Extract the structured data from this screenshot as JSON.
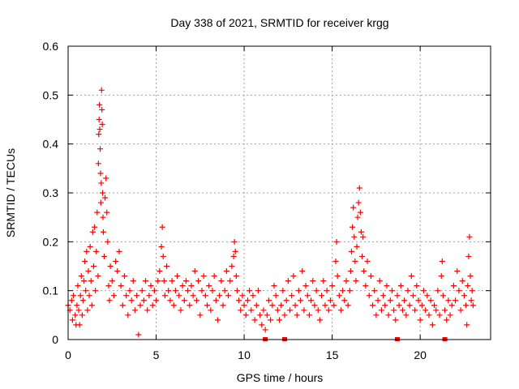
{
  "chart_data": {
    "type": "scatter",
    "title": "Day 338 of 2021, SRMTID for receiver krgg",
    "xlabel": "GPS time / hours",
    "ylabel": "SRMTID / TECUs",
    "xlim": [
      0,
      24
    ],
    "ylim": [
      0,
      0.6
    ],
    "xticks": [
      0,
      5,
      10,
      15,
      20
    ],
    "yticks": [
      0,
      0.1,
      0.2,
      0.3,
      0.4,
      0.5,
      0.6
    ],
    "grid": true,
    "marker": "+",
    "series_color": "#ff0000",
    "series": [
      {
        "name": "SRMTID",
        "points": [
          [
            0.0,
            0.07
          ],
          [
            0.1,
            0.06
          ],
          [
            0.2,
            0.08
          ],
          [
            0.25,
            0.04
          ],
          [
            0.3,
            0.09
          ],
          [
            0.4,
            0.05
          ],
          [
            0.45,
            0.03
          ],
          [
            0.5,
            0.07
          ],
          [
            0.55,
            0.11
          ],
          [
            0.6,
            0.06
          ],
          [
            0.65,
            0.03
          ],
          [
            0.7,
            0.09
          ],
          [
            0.75,
            0.13
          ],
          [
            0.8,
            0.05
          ],
          [
            0.85,
            0.08
          ],
          [
            0.9,
            0.12
          ],
          [
            0.95,
            0.16
          ],
          [
            1.0,
            0.1
          ],
          [
            1.05,
            0.18
          ],
          [
            1.1,
            0.06
          ],
          [
            1.15,
            0.14
          ],
          [
            1.2,
            0.09
          ],
          [
            1.25,
            0.19
          ],
          [
            1.3,
            0.12
          ],
          [
            1.35,
            0.07
          ],
          [
            1.4,
            0.22
          ],
          [
            1.45,
            0.15
          ],
          [
            1.5,
            0.23
          ],
          [
            1.55,
            0.1
          ],
          [
            1.6,
            0.18
          ],
          [
            1.65,
            0.26
          ],
          [
            1.7,
            0.13
          ],
          [
            1.72,
            0.36
          ],
          [
            1.74,
            0.42
          ],
          [
            1.76,
            0.45
          ],
          [
            1.78,
            0.48
          ],
          [
            1.8,
            0.43
          ],
          [
            1.82,
            0.39
          ],
          [
            1.84,
            0.34
          ],
          [
            1.86,
            0.28
          ],
          [
            1.88,
            0.32
          ],
          [
            1.9,
            0.51
          ],
          [
            1.92,
            0.47
          ],
          [
            1.94,
            0.44
          ],
          [
            1.96,
            0.3
          ],
          [
            1.98,
            0.25
          ],
          [
            2.0,
            0.22
          ],
          [
            2.05,
            0.17
          ],
          [
            2.1,
            0.29
          ],
          [
            2.15,
            0.33
          ],
          [
            2.2,
            0.26
          ],
          [
            2.25,
            0.2
          ],
          [
            2.3,
            0.11
          ],
          [
            2.35,
            0.08
          ],
          [
            2.4,
            0.15
          ],
          [
            2.5,
            0.12
          ],
          [
            2.6,
            0.09
          ],
          [
            2.7,
            0.16
          ],
          [
            2.8,
            0.14
          ],
          [
            2.9,
            0.18
          ],
          [
            3.0,
            0.11
          ],
          [
            3.1,
            0.07
          ],
          [
            3.2,
            0.13
          ],
          [
            3.3,
            0.09
          ],
          [
            3.4,
            0.05
          ],
          [
            3.5,
            0.1
          ],
          [
            3.6,
            0.08
          ],
          [
            3.7,
            0.12
          ],
          [
            3.8,
            0.06
          ],
          [
            3.9,
            0.09
          ],
          [
            4.0,
            0.01
          ],
          [
            4.1,
            0.07
          ],
          [
            4.2,
            0.1
          ],
          [
            4.3,
            0.08
          ],
          [
            4.4,
            0.12
          ],
          [
            4.5,
            0.06
          ],
          [
            4.6,
            0.09
          ],
          [
            4.7,
            0.11
          ],
          [
            4.8,
            0.07
          ],
          [
            4.9,
            0.1
          ],
          [
            5.0,
            0.08
          ],
          [
            5.1,
            0.12
          ],
          [
            5.2,
            0.14
          ],
          [
            5.3,
            0.19
          ],
          [
            5.35,
            0.23
          ],
          [
            5.4,
            0.17
          ],
          [
            5.45,
            0.12
          ],
          [
            5.5,
            0.09
          ],
          [
            5.6,
            0.15
          ],
          [
            5.7,
            0.1
          ],
          [
            5.8,
            0.08
          ],
          [
            5.9,
            0.12
          ],
          [
            6.0,
            0.07
          ],
          [
            6.1,
            0.1
          ],
          [
            6.2,
            0.13
          ],
          [
            6.3,
            0.09
          ],
          [
            6.4,
            0.06
          ],
          [
            6.5,
            0.11
          ],
          [
            6.6,
            0.08
          ],
          [
            6.7,
            0.12
          ],
          [
            6.8,
            0.1
          ],
          [
            6.9,
            0.07
          ],
          [
            7.0,
            0.11
          ],
          [
            7.1,
            0.09
          ],
          [
            7.2,
            0.14
          ],
          [
            7.3,
            0.08
          ],
          [
            7.4,
            0.12
          ],
          [
            7.5,
            0.05
          ],
          [
            7.6,
            0.1
          ],
          [
            7.7,
            0.13
          ],
          [
            7.8,
            0.09
          ],
          [
            7.9,
            0.07
          ],
          [
            8.0,
            0.11
          ],
          [
            8.1,
            0.06
          ],
          [
            8.2,
            0.1
          ],
          [
            8.3,
            0.13
          ],
          [
            8.4,
            0.08
          ],
          [
            8.5,
            0.04
          ],
          [
            8.6,
            0.09
          ],
          [
            8.7,
            0.12
          ],
          [
            8.8,
            0.07
          ],
          [
            8.9,
            0.1
          ],
          [
            9.0,
            0.14
          ],
          [
            9.1,
            0.09
          ],
          [
            9.2,
            0.12
          ],
          [
            9.3,
            0.15
          ],
          [
            9.4,
            0.17
          ],
          [
            9.45,
            0.2
          ],
          [
            9.5,
            0.18
          ],
          [
            9.55,
            0.13
          ],
          [
            9.6,
            0.1
          ],
          [
            9.7,
            0.08
          ],
          [
            9.8,
            0.06
          ],
          [
            9.9,
            0.09
          ],
          [
            10.0,
            0.07
          ],
          [
            10.1,
            0.05
          ],
          [
            10.2,
            0.08
          ],
          [
            10.3,
            0.1
          ],
          [
            10.4,
            0.06
          ],
          [
            10.5,
            0.09
          ],
          [
            10.6,
            0.04
          ],
          [
            10.7,
            0.07
          ],
          [
            10.8,
            0.1
          ],
          [
            10.9,
            0.05
          ],
          [
            11.0,
            0.03
          ],
          [
            11.1,
            0.06
          ],
          [
            11.2,
            0.02
          ],
          [
            11.3,
            0.05
          ],
          [
            11.4,
            0.08
          ],
          [
            11.5,
            0.04
          ],
          [
            11.6,
            0.07
          ],
          [
            11.7,
            0.11
          ],
          [
            11.8,
            0.09
          ],
          [
            11.9,
            0.06
          ],
          [
            12.0,
            0.04
          ],
          [
            12.1,
            0.07
          ],
          [
            12.2,
            0.1
          ],
          [
            12.3,
            0.05
          ],
          [
            12.4,
            0.08
          ],
          [
            12.5,
            0.12
          ],
          [
            12.6,
            0.06
          ],
          [
            12.7,
            0.09
          ],
          [
            12.8,
            0.13
          ],
          [
            12.9,
            0.07
          ],
          [
            13.0,
            0.05
          ],
          [
            13.1,
            0.1
          ],
          [
            13.2,
            0.08
          ],
          [
            13.3,
            0.14
          ],
          [
            13.4,
            0.06
          ],
          [
            13.5,
            0.11
          ],
          [
            13.6,
            0.09
          ],
          [
            13.7,
            0.05
          ],
          [
            13.8,
            0.08
          ],
          [
            13.9,
            0.12
          ],
          [
            14.0,
            0.07
          ],
          [
            14.1,
            0.1
          ],
          [
            14.2,
            0.06
          ],
          [
            14.3,
            0.04
          ],
          [
            14.4,
            0.09
          ],
          [
            14.5,
            0.12
          ],
          [
            14.6,
            0.07
          ],
          [
            14.7,
            0.1
          ],
          [
            14.8,
            0.06
          ],
          [
            14.9,
            0.08
          ],
          [
            15.0,
            0.11
          ],
          [
            15.1,
            0.07
          ],
          [
            15.2,
            0.16
          ],
          [
            15.25,
            0.2
          ],
          [
            15.3,
            0.13
          ],
          [
            15.4,
            0.09
          ],
          [
            15.5,
            0.06
          ],
          [
            15.6,
            0.1
          ],
          [
            15.7,
            0.08
          ],
          [
            15.8,
            0.12
          ],
          [
            15.9,
            0.07
          ],
          [
            16.0,
            0.1
          ],
          [
            16.05,
            0.14
          ],
          [
            16.1,
            0.18
          ],
          [
            16.15,
            0.23
          ],
          [
            16.2,
            0.27
          ],
          [
            16.25,
            0.21
          ],
          [
            16.3,
            0.16
          ],
          [
            16.35,
            0.12
          ],
          [
            16.4,
            0.19
          ],
          [
            16.45,
            0.25
          ],
          [
            16.5,
            0.28
          ],
          [
            16.55,
            0.31
          ],
          [
            16.6,
            0.26
          ],
          [
            16.65,
            0.22
          ],
          [
            16.7,
            0.17
          ],
          [
            16.75,
            0.21
          ],
          [
            16.8,
            0.14
          ],
          [
            16.9,
            0.11
          ],
          [
            17.0,
            0.16
          ],
          [
            17.1,
            0.09
          ],
          [
            17.2,
            0.13
          ],
          [
            17.3,
            0.07
          ],
          [
            17.4,
            0.1
          ],
          [
            17.5,
            0.05
          ],
          [
            17.6,
            0.08
          ],
          [
            17.7,
            0.12
          ],
          [
            17.8,
            0.06
          ],
          [
            17.9,
            0.09
          ],
          [
            18.0,
            0.07
          ],
          [
            18.1,
            0.11
          ],
          [
            18.2,
            0.05
          ],
          [
            18.3,
            0.08
          ],
          [
            18.4,
            0.1
          ],
          [
            18.5,
            0.06
          ],
          [
            18.6,
            0.04
          ],
          [
            18.7,
            0.09
          ],
          [
            18.8,
            0.07
          ],
          [
            18.9,
            0.11
          ],
          [
            19.0,
            0.06
          ],
          [
            19.1,
            0.08
          ],
          [
            19.2,
            0.05
          ],
          [
            19.3,
            0.1
          ],
          [
            19.4,
            0.07
          ],
          [
            19.5,
            0.13
          ],
          [
            19.6,
            0.09
          ],
          [
            19.7,
            0.06
          ],
          [
            19.8,
            0.11
          ],
          [
            19.9,
            0.08
          ],
          [
            20.0,
            0.04
          ],
          [
            20.1,
            0.07
          ],
          [
            20.2,
            0.1
          ],
          [
            20.3,
            0.06
          ],
          [
            20.4,
            0.09
          ],
          [
            20.5,
            0.05
          ],
          [
            20.6,
            0.08
          ],
          [
            20.7,
            0.03
          ],
          [
            20.8,
            0.07
          ],
          [
            20.9,
            0.06
          ],
          [
            21.0,
            0.1
          ],
          [
            21.1,
            0.05
          ],
          [
            21.2,
            0.13
          ],
          [
            21.25,
            0.16
          ],
          [
            21.3,
            0.09
          ],
          [
            21.4,
            0.06
          ],
          [
            21.5,
            0.04
          ],
          [
            21.6,
            0.08
          ],
          [
            21.7,
            0.05
          ],
          [
            21.8,
            0.07
          ],
          [
            21.9,
            0.11
          ],
          [
            22.0,
            0.08
          ],
          [
            22.1,
            0.14
          ],
          [
            22.2,
            0.1
          ],
          [
            22.3,
            0.06
          ],
          [
            22.4,
            0.12
          ],
          [
            22.5,
            0.09
          ],
          [
            22.6,
            0.07
          ],
          [
            22.65,
            0.03
          ],
          [
            22.7,
            0.11
          ],
          [
            22.75,
            0.17
          ],
          [
            22.8,
            0.21
          ],
          [
            22.85,
            0.13
          ],
          [
            22.9,
            0.08
          ],
          [
            22.95,
            0.1
          ],
          [
            23.0,
            0.07
          ]
        ]
      }
    ],
    "gap_markers_x": [
      11.2,
      12.3,
      18.7,
      21.4
    ]
  }
}
